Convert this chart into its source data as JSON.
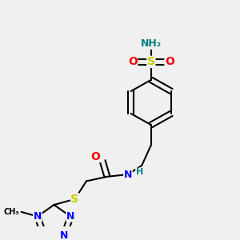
{
  "background_color": "#f0f0f0",
  "atom_colors": {
    "C": "#000000",
    "N": "#0000ff",
    "O": "#ff0000",
    "S": "#cccc00",
    "H": "#008080"
  },
  "figsize": [
    3.0,
    3.0
  ],
  "dpi": 100
}
